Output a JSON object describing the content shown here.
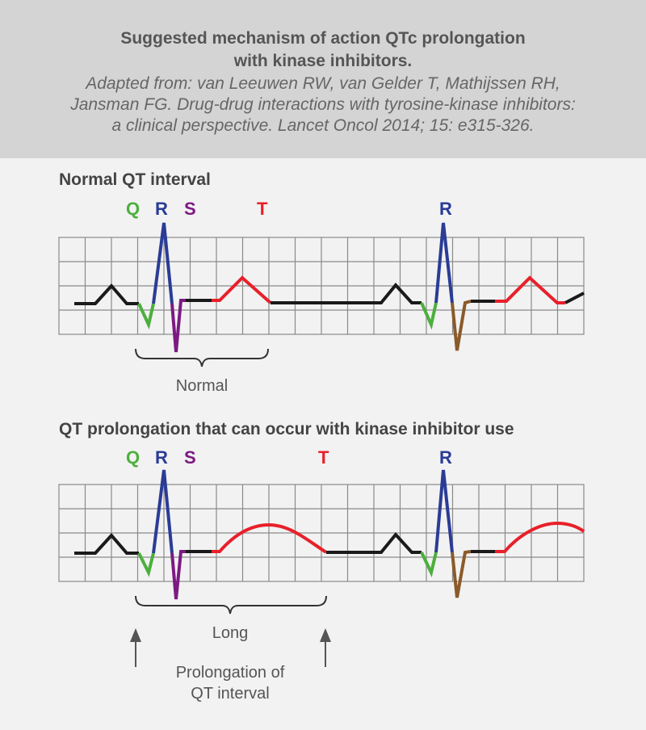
{
  "header": {
    "title_line1": "Suggested mechanism of action QTc prolongation",
    "title_line2": "with kinase inhibitors.",
    "citation_line1": "Adapted from: van Leeuwen RW, van Gelder T, Mathijssen RH,",
    "citation_line2": "Jansman FG. Drug-drug interactions with tyrosine-kinase inhibitors:",
    "citation_line3": "a clinical perspective. Lancet Oncol 2014; 15: e315-326."
  },
  "panel_normal": {
    "title": "Normal QT interval",
    "wave_labels": {
      "q": "Q",
      "r": "R",
      "s": "S",
      "t": "T",
      "r2": "R"
    },
    "interval_label": "Normal"
  },
  "panel_long": {
    "title": "QT prolongation that can occur with kinase inhibitor use",
    "wave_labels": {
      "q": "Q",
      "r": "R",
      "s": "S",
      "t": "T",
      "r2": "R"
    },
    "interval_label": "Long",
    "annotation_line1": "Prolongation of",
    "annotation_line2": "QT interval"
  },
  "colors": {
    "q": "#4caf3c",
    "r": "#2a3c96",
    "s": "#7c1a82",
    "t": "#e8202a",
    "s_second": "#8a5a2a",
    "baseline": "#1a1a1a",
    "grid": "#8a8a8a"
  }
}
